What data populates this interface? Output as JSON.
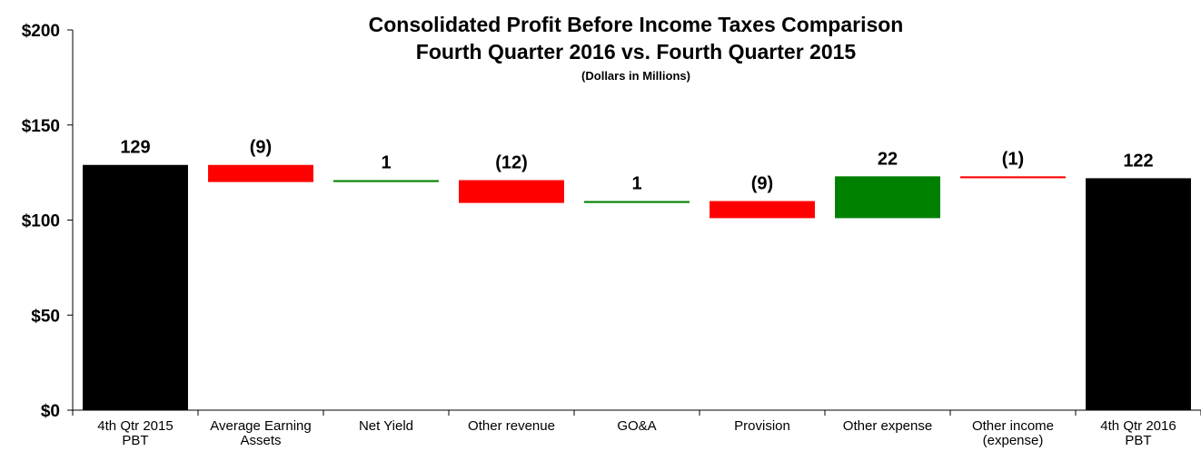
{
  "chart_data": {
    "type": "bar",
    "subtype": "waterfall",
    "title": "Consolidated Profit Before Income Taxes Comparison",
    "subtitle": "Fourth Quarter 2016 vs. Fourth Quarter 2015",
    "units_note": "(Dollars in Millions)",
    "categories": [
      "4th Qtr 2015 PBT",
      "Average Earning Assets",
      "Net Yield",
      "Other revenue",
      "GO&A",
      "Provision",
      "Other expense",
      "Other income (expense)",
      "4th Qtr 2016 PBT"
    ],
    "category_lines": [
      [
        "4th Qtr 2015",
        "PBT"
      ],
      [
        "Average Earning",
        "Assets"
      ],
      [
        "Net Yield"
      ],
      [
        "Other revenue"
      ],
      [
        "GO&A"
      ],
      [
        "Provision"
      ],
      [
        "Other expense"
      ],
      [
        "Other income",
        "(expense)"
      ],
      [
        "4th Qtr 2016",
        "PBT"
      ]
    ],
    "values": [
      129,
      -9,
      1,
      -12,
      1,
      -9,
      22,
      -1,
      122
    ],
    "kinds": [
      "total",
      "change",
      "change",
      "change",
      "change",
      "change",
      "change",
      "change",
      "total"
    ],
    "data_labels": [
      "129",
      "(9)",
      "1",
      "(12)",
      "1",
      "(9)",
      "22",
      "(1)",
      "122"
    ],
    "colors": {
      "total": "#000000",
      "increase": "#008000",
      "decrease": "#ff0000"
    },
    "ylim": [
      0,
      200
    ],
    "yticks": [
      0,
      50,
      100,
      150,
      200
    ],
    "ytick_labels": [
      "$0",
      "$50",
      "$100",
      "$150",
      "$200"
    ],
    "grid": false,
    "legend": "none"
  }
}
